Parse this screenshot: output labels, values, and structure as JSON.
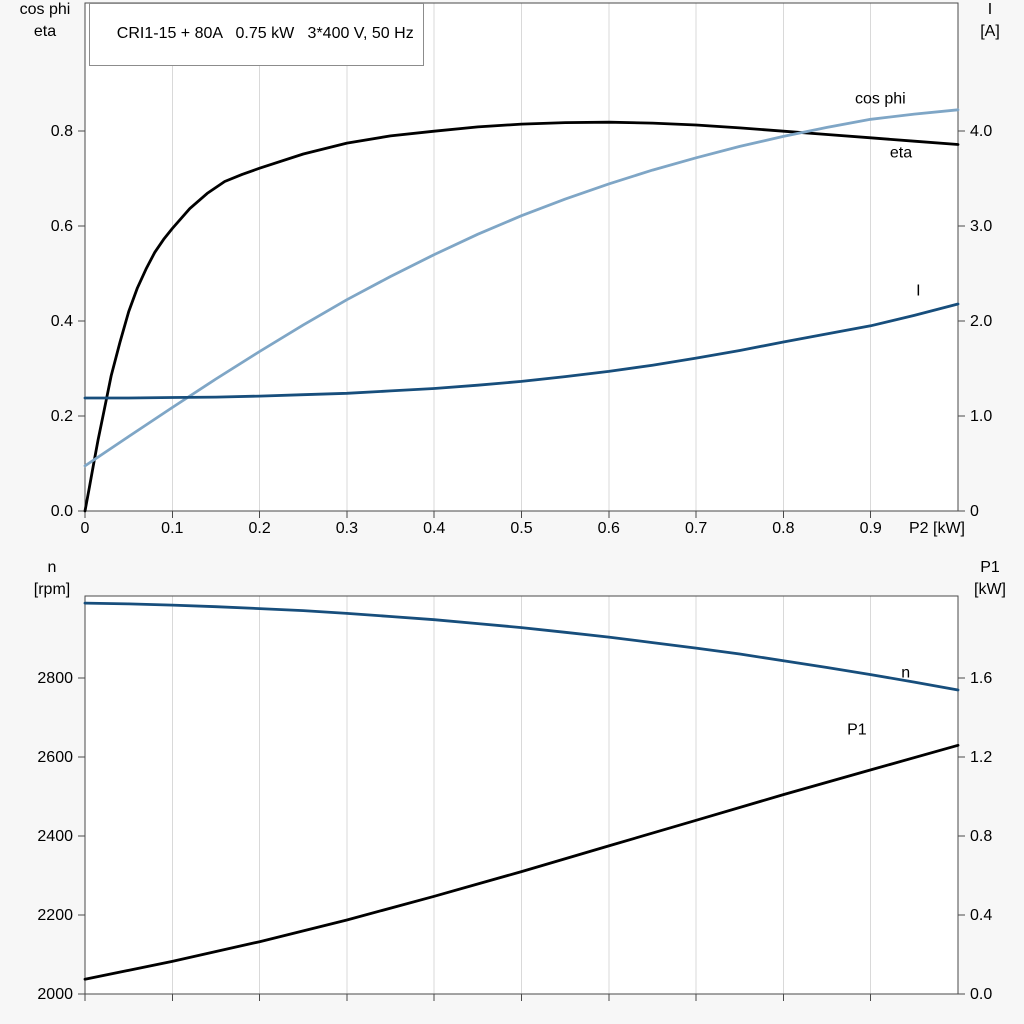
{
  "colors": {
    "background": "#f7f7f7",
    "plot_background": "#ffffff",
    "grid": "#d9d9d9",
    "frame": "#4a4a4a",
    "eta_black": "#000000",
    "cos_phi_blue": "#7fa6c6",
    "current_dark_blue": "#174e7c"
  },
  "chart_data": [
    {
      "type": "line",
      "title": "CRI1-15 + 80A   0.75 kW   3*400 V, 50 Hz",
      "x_axis": {
        "min": 0,
        "max": 1.0,
        "ticks": [
          0,
          0.1,
          0.2,
          0.3,
          0.4,
          0.5,
          0.6,
          0.7,
          0.8,
          0.9
        ],
        "tick_labels": [
          "0",
          "0.1",
          "0.2",
          "0.3",
          "0.4",
          "0.5",
          "0.6",
          "0.7",
          "0.8",
          "0.9"
        ],
        "label": "P2 [kW]",
        "show_tick_labels": true,
        "grid": true
      },
      "left_axis": {
        "title_lines": [
          "cos phi",
          "eta"
        ],
        "min": 0,
        "max": 1.07,
        "ticks": [
          0,
          0.2,
          0.4,
          0.6,
          0.8
        ],
        "tick_labels": [
          "0.0",
          "0.2",
          "0.4",
          "0.6",
          "0.8"
        ]
      },
      "right_axis": {
        "title_lines": [
          "I",
          "[A]"
        ],
        "min": 0,
        "max": 5.35,
        "ticks": [
          0,
          1,
          2,
          3,
          4
        ],
        "tick_labels": [
          "0",
          "1.0",
          "2.0",
          "3.0",
          "4.0"
        ]
      },
      "series": [
        {
          "name": "eta",
          "axis": "left",
          "color": "#000000",
          "label": {
            "text": "eta",
            "x": 0.922,
            "y": 0.745
          },
          "points": [
            [
              0,
              0
            ],
            [
              0.005,
              0.05
            ],
            [
              0.01,
              0.1
            ],
            [
              0.015,
              0.15
            ],
            [
              0.02,
              0.195
            ],
            [
              0.03,
              0.285
            ],
            [
              0.04,
              0.355
            ],
            [
              0.05,
              0.42
            ],
            [
              0.06,
              0.47
            ],
            [
              0.07,
              0.51
            ],
            [
              0.08,
              0.545
            ],
            [
              0.09,
              0.572
            ],
            [
              0.1,
              0.595
            ],
            [
              0.12,
              0.637
            ],
            [
              0.14,
              0.669
            ],
            [
              0.16,
              0.694
            ],
            [
              0.18,
              0.709
            ],
            [
              0.2,
              0.722
            ],
            [
              0.25,
              0.752
            ],
            [
              0.3,
              0.775
            ],
            [
              0.35,
              0.79
            ],
            [
              0.4,
              0.8
            ],
            [
              0.45,
              0.809
            ],
            [
              0.5,
              0.815
            ],
            [
              0.55,
              0.818
            ],
            [
              0.6,
              0.819
            ],
            [
              0.65,
              0.817
            ],
            [
              0.7,
              0.813
            ],
            [
              0.75,
              0.807
            ],
            [
              0.8,
              0.8
            ],
            [
              0.85,
              0.793
            ],
            [
              0.9,
              0.786
            ],
            [
              0.95,
              0.779
            ],
            [
              1.0,
              0.772
            ]
          ]
        },
        {
          "name": "cos phi",
          "axis": "left",
          "color": "#7fa6c6",
          "label": {
            "text": "cos phi",
            "x": 0.882,
            "y": 0.858
          },
          "points": [
            [
              0,
              0.095
            ],
            [
              0.05,
              0.157
            ],
            [
              0.1,
              0.218
            ],
            [
              0.15,
              0.278
            ],
            [
              0.2,
              0.336
            ],
            [
              0.25,
              0.392
            ],
            [
              0.3,
              0.445
            ],
            [
              0.35,
              0.494
            ],
            [
              0.4,
              0.54
            ],
            [
              0.45,
              0.583
            ],
            [
              0.5,
              0.622
            ],
            [
              0.55,
              0.657
            ],
            [
              0.6,
              0.689
            ],
            [
              0.65,
              0.718
            ],
            [
              0.7,
              0.744
            ],
            [
              0.75,
              0.768
            ],
            [
              0.8,
              0.789
            ],
            [
              0.85,
              0.808
            ],
            [
              0.9,
              0.825
            ],
            [
              0.95,
              0.836
            ],
            [
              1.0,
              0.845
            ]
          ]
        },
        {
          "name": "I",
          "axis": "right",
          "color": "#174e7c",
          "label": {
            "text": "I",
            "x": 0.952,
            "y": 2.27
          },
          "points": [
            [
              0,
              1.19
            ],
            [
              0.05,
              1.19
            ],
            [
              0.1,
              1.195
            ],
            [
              0.15,
              1.2
            ],
            [
              0.2,
              1.21
            ],
            [
              0.25,
              1.225
            ],
            [
              0.3,
              1.24
            ],
            [
              0.35,
              1.265
            ],
            [
              0.4,
              1.29
            ],
            [
              0.45,
              1.325
            ],
            [
              0.5,
              1.365
            ],
            [
              0.55,
              1.415
            ],
            [
              0.6,
              1.47
            ],
            [
              0.65,
              1.535
            ],
            [
              0.7,
              1.61
            ],
            [
              0.75,
              1.69
            ],
            [
              0.8,
              1.78
            ],
            [
              0.85,
              1.865
            ],
            [
              0.9,
              1.95
            ],
            [
              0.95,
              2.06
            ],
            [
              1.0,
              2.18
            ]
          ]
        }
      ]
    },
    {
      "type": "line",
      "title": "",
      "x_axis": {
        "min": 0,
        "max": 1.0,
        "ticks": [
          0,
          0.1,
          0.2,
          0.3,
          0.4,
          0.5,
          0.6,
          0.7,
          0.8,
          0.9
        ],
        "tick_labels": [
          "",
          "",
          "",
          "",
          "",
          "",
          "",
          "",
          "",
          ""
        ],
        "label": "",
        "show_tick_labels": false,
        "grid": true
      },
      "left_axis": {
        "title_lines": [
          "n",
          "[rpm]"
        ],
        "min": 2000,
        "max": 3008,
        "ticks": [
          2000,
          2200,
          2400,
          2600,
          2800
        ],
        "tick_labels": [
          "2000",
          "2200",
          "2400",
          "2600",
          "2800"
        ]
      },
      "right_axis": {
        "title_lines": [
          "P1",
          "[kW]"
        ],
        "min": 0,
        "max": 2.016,
        "ticks": [
          0,
          0.4,
          0.8,
          1.2,
          1.6
        ],
        "tick_labels": [
          "0.0",
          "0.4",
          "0.8",
          "1.2",
          "1.6"
        ]
      },
      "series": [
        {
          "name": "n",
          "axis": "left",
          "color": "#174e7c",
          "label": {
            "text": "n",
            "x": 0.935,
            "y": 2802
          },
          "points": [
            [
              0,
              2990
            ],
            [
              0.05,
              2988
            ],
            [
              0.1,
              2985
            ],
            [
              0.15,
              2981
            ],
            [
              0.2,
              2976
            ],
            [
              0.25,
              2971
            ],
            [
              0.3,
              2964
            ],
            [
              0.35,
              2956
            ],
            [
              0.4,
              2948
            ],
            [
              0.45,
              2938
            ],
            [
              0.5,
              2928
            ],
            [
              0.55,
              2916
            ],
            [
              0.6,
              2904
            ],
            [
              0.65,
              2890
            ],
            [
              0.7,
              2876
            ],
            [
              0.75,
              2861
            ],
            [
              0.8,
              2844
            ],
            [
              0.85,
              2827
            ],
            [
              0.9,
              2809
            ],
            [
              0.95,
              2790
            ],
            [
              1.0,
              2770
            ]
          ]
        },
        {
          "name": "P1",
          "axis": "right",
          "color": "#000000",
          "label": {
            "text": "P1",
            "x": 0.873,
            "y": 1.315
          },
          "points": [
            [
              0,
              0.075
            ],
            [
              0.1,
              0.165
            ],
            [
              0.2,
              0.265
            ],
            [
              0.3,
              0.375
            ],
            [
              0.4,
              0.495
            ],
            [
              0.5,
              0.62
            ],
            [
              0.6,
              0.75
            ],
            [
              0.7,
              0.88
            ],
            [
              0.8,
              1.01
            ],
            [
              0.9,
              1.135
            ],
            [
              1.0,
              1.26
            ]
          ]
        }
      ]
    }
  ]
}
